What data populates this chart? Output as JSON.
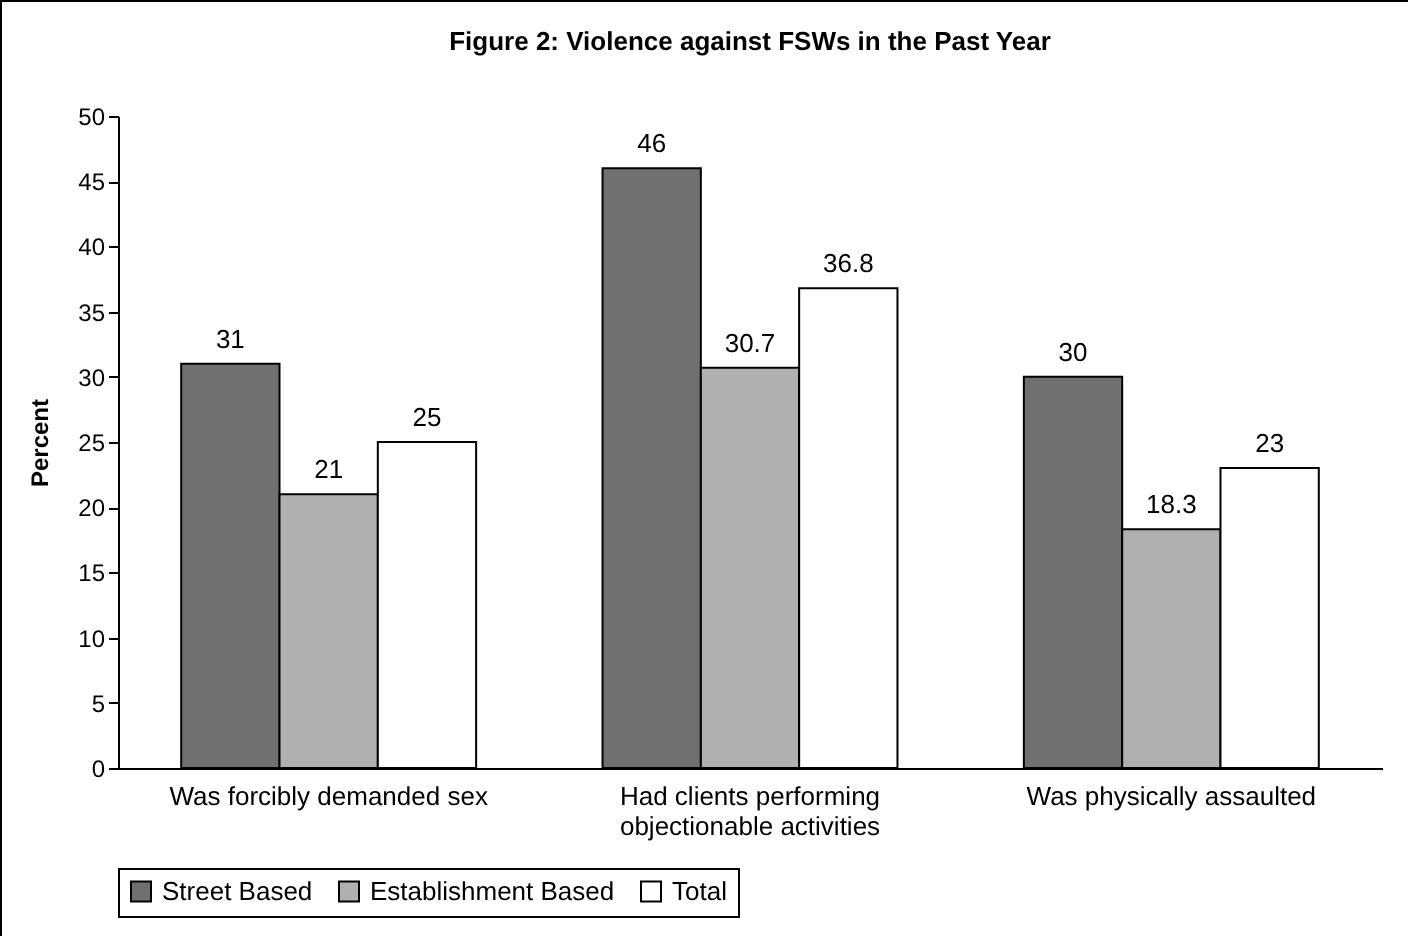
{
  "chart_data": {
    "type": "bar",
    "title": "Figure 2: Violence against FSWs in the Past Year",
    "ylabel": "Percent",
    "categories": [
      "Was forcibly demanded sex",
      "Had clients performing objectionable activities",
      "Was physically assaulted"
    ],
    "series": [
      {
        "name": "Street Based",
        "color": "#707070",
        "values": [
          31,
          46,
          30
        ]
      },
      {
        "name": "Establishment Based",
        "color": "#b0b0b0",
        "values": [
          21,
          30.7,
          18.3
        ]
      },
      {
        "name": "Total",
        "color": "#ffffff",
        "values": [
          25,
          36.8,
          23
        ]
      }
    ],
    "ylim": [
      0,
      50
    ],
    "yticks": [
      0,
      5,
      10,
      15,
      20,
      25,
      30,
      35,
      40,
      45,
      50
    ],
    "grid": false,
    "legend": "bottom",
    "data_labels": true
  }
}
